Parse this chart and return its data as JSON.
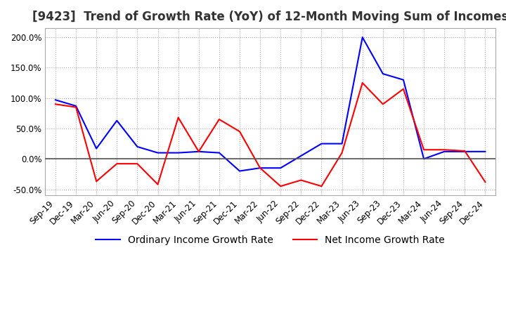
{
  "title": "[9423]  Trend of Growth Rate (YoY) of 12-Month Moving Sum of Incomes",
  "x_labels": [
    "Sep-19",
    "Dec-19",
    "Mar-20",
    "Jun-20",
    "Sep-20",
    "Dec-20",
    "Mar-21",
    "Jun-21",
    "Sep-21",
    "Dec-21",
    "Mar-22",
    "Jun-22",
    "Sep-22",
    "Dec-22",
    "Mar-23",
    "Jun-23",
    "Sep-23",
    "Dec-23",
    "Mar-24",
    "Jun-24",
    "Sep-24",
    "Dec-24"
  ],
  "ordinary_income": [
    97,
    87,
    17,
    63,
    20,
    10,
    10,
    12,
    10,
    -20,
    -15,
    -15,
    5,
    25,
    25,
    200,
    140,
    130,
    0,
    12,
    12,
    12
  ],
  "net_income": [
    90,
    85,
    -37,
    -8,
    -8,
    -42,
    68,
    12,
    65,
    45,
    -15,
    -45,
    -35,
    -45,
    10,
    125,
    90,
    115,
    15,
    15,
    13,
    -38
  ],
  "ordinary_color": "#0000ff",
  "net_color": "#ff0000",
  "ylim": [
    -60,
    215
  ],
  "yticks": [
    -50,
    0,
    50,
    100,
    150,
    200
  ],
  "background_color": "#ffffff",
  "legend_ordinary": "Ordinary Income Growth Rate",
  "legend_net": "Net Income Growth Rate",
  "title_fontsize": 12,
  "tick_fontsize": 8.5,
  "legend_fontsize": 10
}
